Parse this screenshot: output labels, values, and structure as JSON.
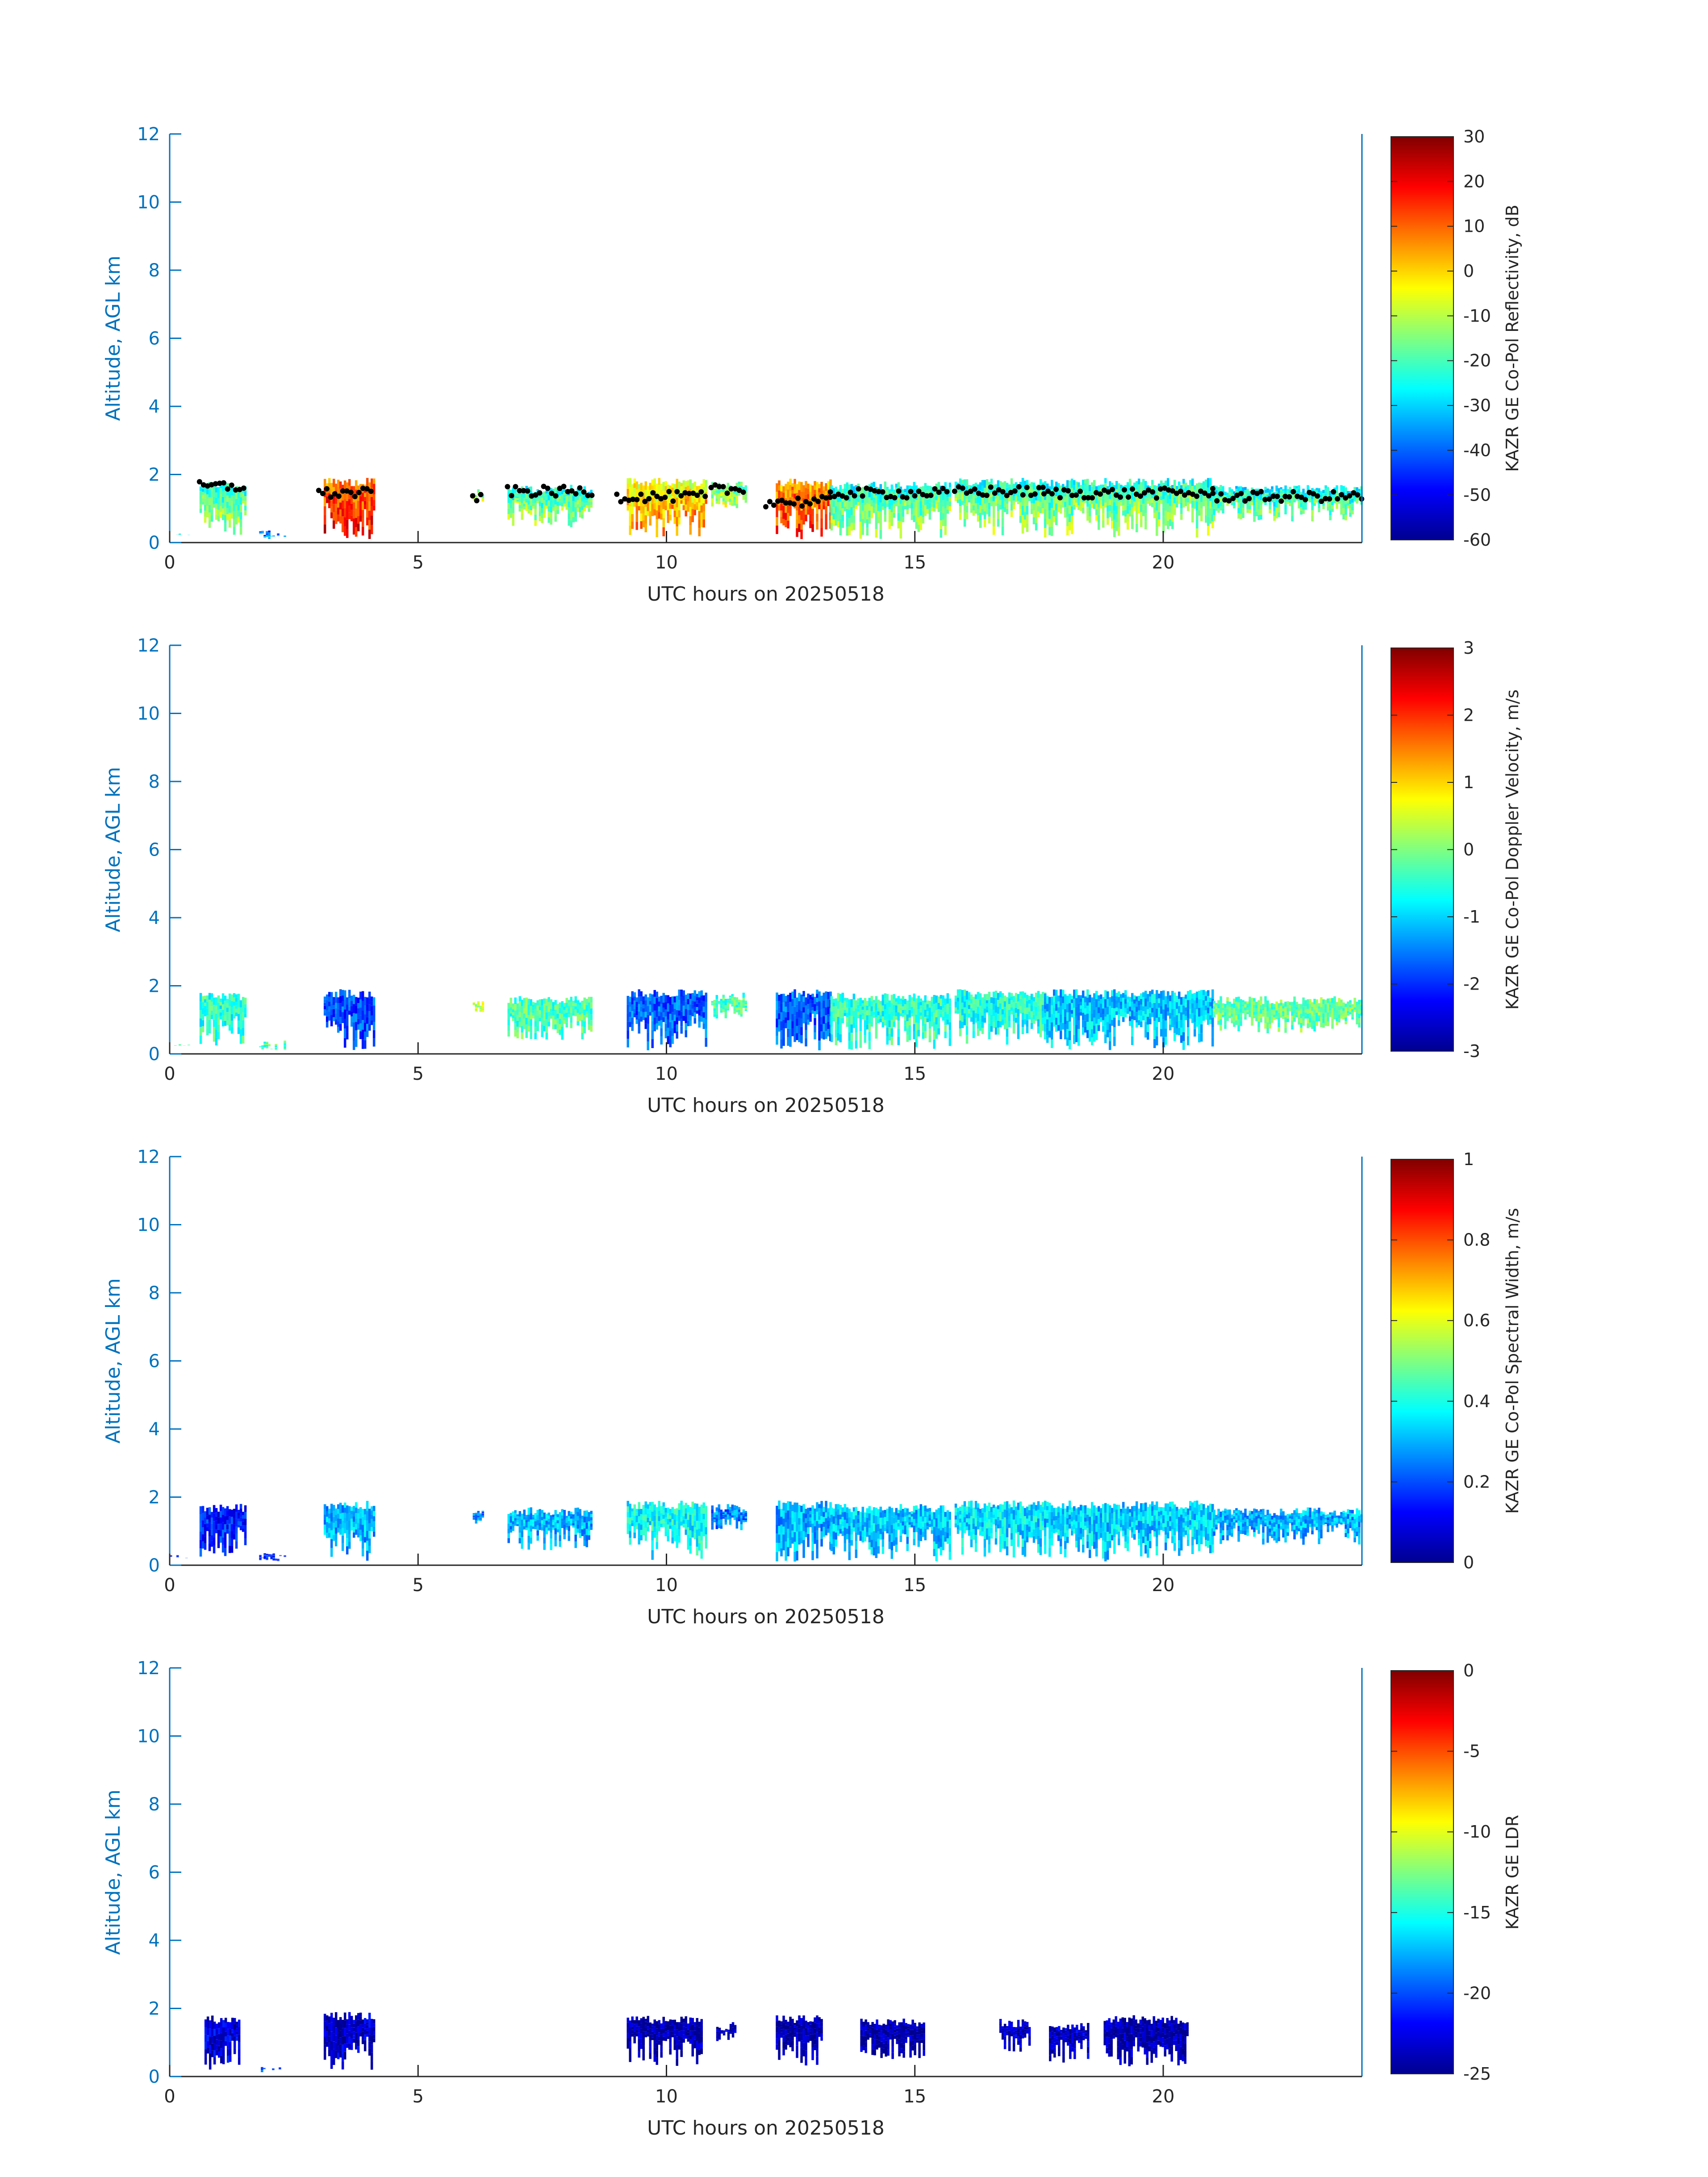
{
  "colors": {
    "axis_blue": "#0072bd",
    "text_dark": "#262626",
    "marker": "#000000",
    "colormap": [
      "#00008f",
      "#0000ff",
      "#0080ff",
      "#00ffff",
      "#80ff80",
      "#ffff00",
      "#ff8000",
      "#ff0000",
      "#800000"
    ]
  },
  "chart_data": [
    {
      "type": "heatmap",
      "title": "",
      "xlabel": "UTC hours on 20250518",
      "ylabel": "Altitude, AGL km",
      "xlim": [
        0,
        24
      ],
      "ylim": [
        0,
        12
      ],
      "xticks": [
        0,
        5,
        10,
        15,
        20
      ],
      "yticks": [
        0,
        2,
        4,
        6,
        8,
        10,
        12
      ],
      "colorbar": {
        "label": "KAZR GE Co-Pol Reflectivity, dB",
        "range": [
          -60,
          30
        ],
        "ticks": [
          30,
          20,
          10,
          0,
          -10,
          -20,
          -30,
          -40,
          -50,
          -60
        ]
      },
      "overlay": {
        "type": "scatter",
        "color": "black",
        "description_visible": false
      },
      "segments": [
        {
          "x0": 0.0,
          "x1": 0.4,
          "top": 0.3,
          "base": 0.2,
          "level": 0.35
        },
        {
          "x0": 0.6,
          "x1": 1.5,
          "top": 1.8,
          "base": 0.2,
          "level": 0.45
        },
        {
          "x0": 1.8,
          "x1": 2.3,
          "top": 0.4,
          "base": 0.1,
          "level": 0.25
        },
        {
          "x0": 3.1,
          "x1": 4.1,
          "top": 1.9,
          "base": 0.1,
          "level": 0.8
        },
        {
          "x0": 6.1,
          "x1": 6.3,
          "top": 1.6,
          "base": 1.2,
          "level": 0.5
        },
        {
          "x0": 6.8,
          "x1": 8.5,
          "top": 1.7,
          "base": 0.4,
          "level": 0.45
        },
        {
          "x0": 9.2,
          "x1": 10.8,
          "top": 1.9,
          "base": 0.1,
          "level": 0.65
        },
        {
          "x0": 10.9,
          "x1": 11.6,
          "top": 1.8,
          "base": 1.0,
          "level": 0.5
        },
        {
          "x0": 12.2,
          "x1": 13.3,
          "top": 1.9,
          "base": 0.1,
          "level": 0.75
        },
        {
          "x0": 13.3,
          "x1": 15.7,
          "top": 1.8,
          "base": 0.1,
          "level": 0.45
        },
        {
          "x0": 15.8,
          "x1": 17.6,
          "top": 1.9,
          "base": 0.2,
          "level": 0.45
        },
        {
          "x0": 17.6,
          "x1": 21.0,
          "top": 1.9,
          "base": 0.1,
          "level": 0.45
        },
        {
          "x0": 21.0,
          "x1": 24.0,
          "top": 1.7,
          "base": 0.6,
          "level": 0.42
        }
      ],
      "cloud_base_points": [
        {
          "x0": 0.6,
          "x1": 1.5,
          "y": 1.65
        },
        {
          "x0": 3.0,
          "x1": 4.1,
          "y": 1.45
        },
        {
          "x0": 6.1,
          "x1": 6.3,
          "y": 1.35
        },
        {
          "x0": 6.8,
          "x1": 8.5,
          "y": 1.5
        },
        {
          "x0": 9.0,
          "x1": 10.8,
          "y": 1.35
        },
        {
          "x0": 10.9,
          "x1": 11.6,
          "y": 1.55
        },
        {
          "x0": 12.0,
          "x1": 13.3,
          "y": 1.2
        },
        {
          "x0": 13.3,
          "x1": 15.7,
          "y": 1.45
        },
        {
          "x0": 15.8,
          "x1": 17.6,
          "y": 1.5
        },
        {
          "x0": 17.6,
          "x1": 21.0,
          "y": 1.45
        },
        {
          "x0": 21.0,
          "x1": 24.0,
          "y": 1.35
        }
      ]
    },
    {
      "type": "heatmap",
      "title": "",
      "xlabel": "UTC hours on 20250518",
      "ylabel": "Altitude, AGL km",
      "xlim": [
        0,
        24
      ],
      "ylim": [
        0,
        12
      ],
      "xticks": [
        0,
        5,
        10,
        15,
        20
      ],
      "yticks": [
        0,
        2,
        4,
        6,
        8,
        10,
        12
      ],
      "colorbar": {
        "label": "KAZR GE Co-Pol Doppler Velocity, m/s",
        "range": [
          -3,
          3
        ],
        "ticks": [
          3,
          2,
          1,
          0,
          -1,
          -2,
          -3
        ]
      },
      "segments": [
        {
          "x0": 0.0,
          "x1": 0.4,
          "top": 0.3,
          "base": 0.2,
          "level": 0.45
        },
        {
          "x0": 0.6,
          "x1": 1.5,
          "top": 1.8,
          "base": 0.2,
          "level": 0.42
        },
        {
          "x0": 1.8,
          "x1": 2.3,
          "top": 0.4,
          "base": 0.1,
          "level": 0.45
        },
        {
          "x0": 3.1,
          "x1": 4.1,
          "top": 1.9,
          "base": 0.1,
          "level": 0.2
        },
        {
          "x0": 6.1,
          "x1": 6.3,
          "top": 1.6,
          "base": 1.2,
          "level": 0.55
        },
        {
          "x0": 6.8,
          "x1": 8.5,
          "top": 1.7,
          "base": 0.4,
          "level": 0.45
        },
        {
          "x0": 9.2,
          "x1": 10.8,
          "top": 1.9,
          "base": 0.1,
          "level": 0.22
        },
        {
          "x0": 10.9,
          "x1": 11.6,
          "top": 1.8,
          "base": 1.0,
          "level": 0.45
        },
        {
          "x0": 12.2,
          "x1": 13.3,
          "top": 1.9,
          "base": 0.1,
          "level": 0.22
        },
        {
          "x0": 13.3,
          "x1": 15.7,
          "top": 1.8,
          "base": 0.1,
          "level": 0.42
        },
        {
          "x0": 15.8,
          "x1": 17.6,
          "top": 1.9,
          "base": 0.2,
          "level": 0.4
        },
        {
          "x0": 17.6,
          "x1": 21.0,
          "top": 1.9,
          "base": 0.1,
          "level": 0.32
        },
        {
          "x0": 21.0,
          "x1": 24.0,
          "top": 1.7,
          "base": 0.6,
          "level": 0.48
        }
      ]
    },
    {
      "type": "heatmap",
      "title": "",
      "xlabel": "UTC hours on 20250518",
      "ylabel": "Altitude, AGL km",
      "xlim": [
        0,
        24
      ],
      "ylim": [
        0,
        12
      ],
      "xticks": [
        0,
        5,
        10,
        15,
        20
      ],
      "yticks": [
        0,
        2,
        4,
        6,
        8,
        10,
        12
      ],
      "colorbar": {
        "label": "KAZR GE Co-Pol Spectral Width, m/s",
        "range": [
          0,
          1
        ],
        "ticks": [
          1,
          0.8,
          0.6,
          0.4,
          0.2,
          0
        ]
      },
      "segments": [
        {
          "x0": 0.0,
          "x1": 0.4,
          "top": 0.3,
          "base": 0.2,
          "level": 0.15
        },
        {
          "x0": 0.6,
          "x1": 1.5,
          "top": 1.8,
          "base": 0.2,
          "level": 0.15
        },
        {
          "x0": 1.8,
          "x1": 2.3,
          "top": 0.4,
          "base": 0.1,
          "level": 0.15
        },
        {
          "x0": 3.1,
          "x1": 4.1,
          "top": 1.9,
          "base": 0.1,
          "level": 0.3
        },
        {
          "x0": 6.1,
          "x1": 6.3,
          "top": 1.6,
          "base": 1.2,
          "level": 0.25
        },
        {
          "x0": 6.8,
          "x1": 8.5,
          "top": 1.7,
          "base": 0.4,
          "level": 0.3
        },
        {
          "x0": 9.2,
          "x1": 10.8,
          "top": 1.9,
          "base": 0.1,
          "level": 0.38
        },
        {
          "x0": 10.9,
          "x1": 11.6,
          "top": 1.8,
          "base": 1.0,
          "level": 0.25
        },
        {
          "x0": 12.2,
          "x1": 13.3,
          "top": 1.9,
          "base": 0.1,
          "level": 0.3
        },
        {
          "x0": 13.3,
          "x1": 15.7,
          "top": 1.8,
          "base": 0.1,
          "level": 0.32
        },
        {
          "x0": 15.8,
          "x1": 17.6,
          "top": 1.9,
          "base": 0.2,
          "level": 0.35
        },
        {
          "x0": 17.6,
          "x1": 21.0,
          "top": 1.9,
          "base": 0.1,
          "level": 0.33
        },
        {
          "x0": 21.0,
          "x1": 24.0,
          "top": 1.7,
          "base": 0.6,
          "level": 0.3
        }
      ]
    },
    {
      "type": "heatmap",
      "title": "",
      "xlabel": "UTC hours on 20250518",
      "ylabel": "Altitude, AGL km",
      "xlim": [
        0,
        24
      ],
      "ylim": [
        0,
        12
      ],
      "xticks": [
        0,
        5,
        10,
        15,
        20
      ],
      "yticks": [
        0,
        2,
        4,
        6,
        8,
        10,
        12
      ],
      "colorbar": {
        "label": "KAZR GE LDR",
        "range": [
          -25,
          0
        ],
        "ticks": [
          0,
          -5,
          -10,
          -15,
          -20,
          -25
        ]
      },
      "segments": [
        {
          "x0": 0.7,
          "x1": 1.4,
          "top": 1.8,
          "base": 0.2,
          "level": 0.08
        },
        {
          "x0": 1.7,
          "x1": 2.2,
          "top": 0.3,
          "base": 0.1,
          "level": 0.2
        },
        {
          "x0": 3.1,
          "x1": 4.1,
          "top": 1.9,
          "base": 0.2,
          "level": 0.06
        },
        {
          "x0": 9.2,
          "x1": 10.7,
          "top": 1.8,
          "base": 0.3,
          "level": 0.03
        },
        {
          "x0": 11.0,
          "x1": 11.4,
          "top": 1.6,
          "base": 1.0,
          "level": 0.05
        },
        {
          "x0": 12.2,
          "x1": 13.1,
          "top": 1.8,
          "base": 0.3,
          "level": 0.03
        },
        {
          "x0": 13.9,
          "x1": 15.2,
          "top": 1.7,
          "base": 0.5,
          "level": 0.03
        },
        {
          "x0": 16.7,
          "x1": 17.3,
          "top": 1.7,
          "base": 0.7,
          "level": 0.05
        },
        {
          "x0": 17.7,
          "x1": 18.5,
          "top": 1.6,
          "base": 0.4,
          "level": 0.06
        },
        {
          "x0": 18.8,
          "x1": 20.5,
          "top": 1.8,
          "base": 0.3,
          "level": 0.03
        }
      ]
    }
  ]
}
